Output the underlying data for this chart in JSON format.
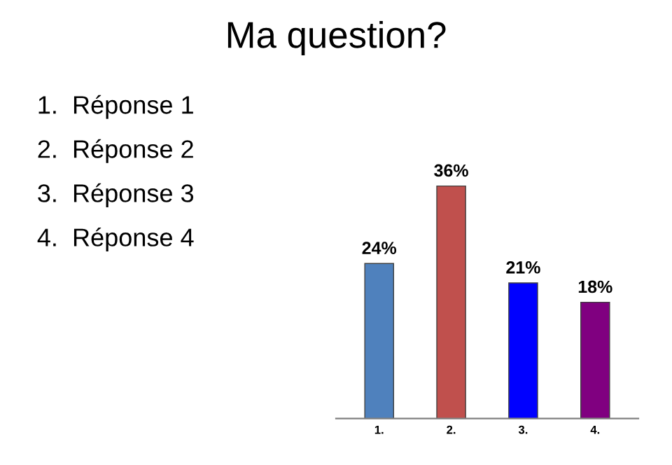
{
  "chart_data": {
    "type": "bar",
    "title": "Ma question?",
    "categories": [
      "1.",
      "2.",
      "3.",
      "4."
    ],
    "values": [
      24,
      36,
      21,
      18
    ],
    "colors": [
      "#4f81bd",
      "#c0504d",
      "#0000ff",
      "#800080"
    ],
    "value_labels": [
      "24%",
      "36%",
      "21%",
      "18%"
    ],
    "annotations": [
      "1.  Réponse 1",
      "2.  Réponse 2",
      "3.  Réponse 3",
      "4.  Réponse 4"
    ],
    "grid": false,
    "legend": false
  }
}
